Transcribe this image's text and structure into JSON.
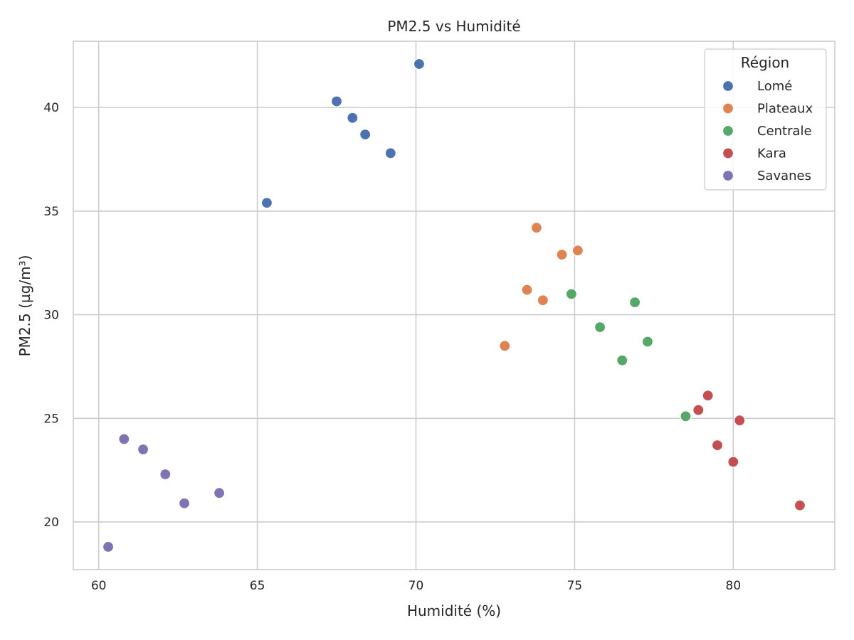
{
  "chart_data": {
    "type": "scatter",
    "title": "PM2.5 vs Humidité",
    "xlabel": "Humidité (%)",
    "ylabel": "PM2.5 (µg/m³)",
    "xlim": [
      59.2,
      83.2
    ],
    "ylim": [
      17.7,
      43.2
    ],
    "xticks": [
      60,
      65,
      70,
      75,
      80
    ],
    "yticks": [
      20,
      25,
      30,
      35,
      40
    ],
    "grid": true,
    "legend": {
      "title": "Région",
      "placement": "top-right"
    },
    "series": [
      {
        "name": "Lomé",
        "color": "#4c72b0",
        "points": [
          {
            "x": 70.1,
            "y": 42.1
          },
          {
            "x": 67.5,
            "y": 40.3
          },
          {
            "x": 68.0,
            "y": 39.5
          },
          {
            "x": 68.4,
            "y": 38.7
          },
          {
            "x": 69.2,
            "y": 37.8
          },
          {
            "x": 65.3,
            "y": 35.4
          }
        ]
      },
      {
        "name": "Plateaux",
        "color": "#dd8452",
        "points": [
          {
            "x": 73.8,
            "y": 34.2
          },
          {
            "x": 74.6,
            "y": 32.9
          },
          {
            "x": 75.1,
            "y": 33.1
          },
          {
            "x": 73.5,
            "y": 31.2
          },
          {
            "x": 74.0,
            "y": 30.7
          },
          {
            "x": 72.8,
            "y": 28.5
          }
        ]
      },
      {
        "name": "Centrale",
        "color": "#55a868",
        "points": [
          {
            "x": 74.9,
            "y": 31.0
          },
          {
            "x": 76.9,
            "y": 30.6
          },
          {
            "x": 75.8,
            "y": 29.4
          },
          {
            "x": 77.3,
            "y": 28.7
          },
          {
            "x": 76.5,
            "y": 27.8
          },
          {
            "x": 78.5,
            "y": 25.1
          }
        ]
      },
      {
        "name": "Kara",
        "color": "#c44e52",
        "points": [
          {
            "x": 79.2,
            "y": 26.1
          },
          {
            "x": 78.9,
            "y": 25.4
          },
          {
            "x": 80.2,
            "y": 24.9
          },
          {
            "x": 79.5,
            "y": 23.7
          },
          {
            "x": 80.0,
            "y": 22.9
          },
          {
            "x": 82.1,
            "y": 20.8
          }
        ]
      },
      {
        "name": "Savanes",
        "color": "#8172b3",
        "points": [
          {
            "x": 60.8,
            "y": 24.0
          },
          {
            "x": 61.4,
            "y": 23.5
          },
          {
            "x": 62.1,
            "y": 22.3
          },
          {
            "x": 62.7,
            "y": 20.9
          },
          {
            "x": 63.8,
            "y": 21.4
          },
          {
            "x": 60.3,
            "y": 18.8
          }
        ]
      }
    ]
  }
}
